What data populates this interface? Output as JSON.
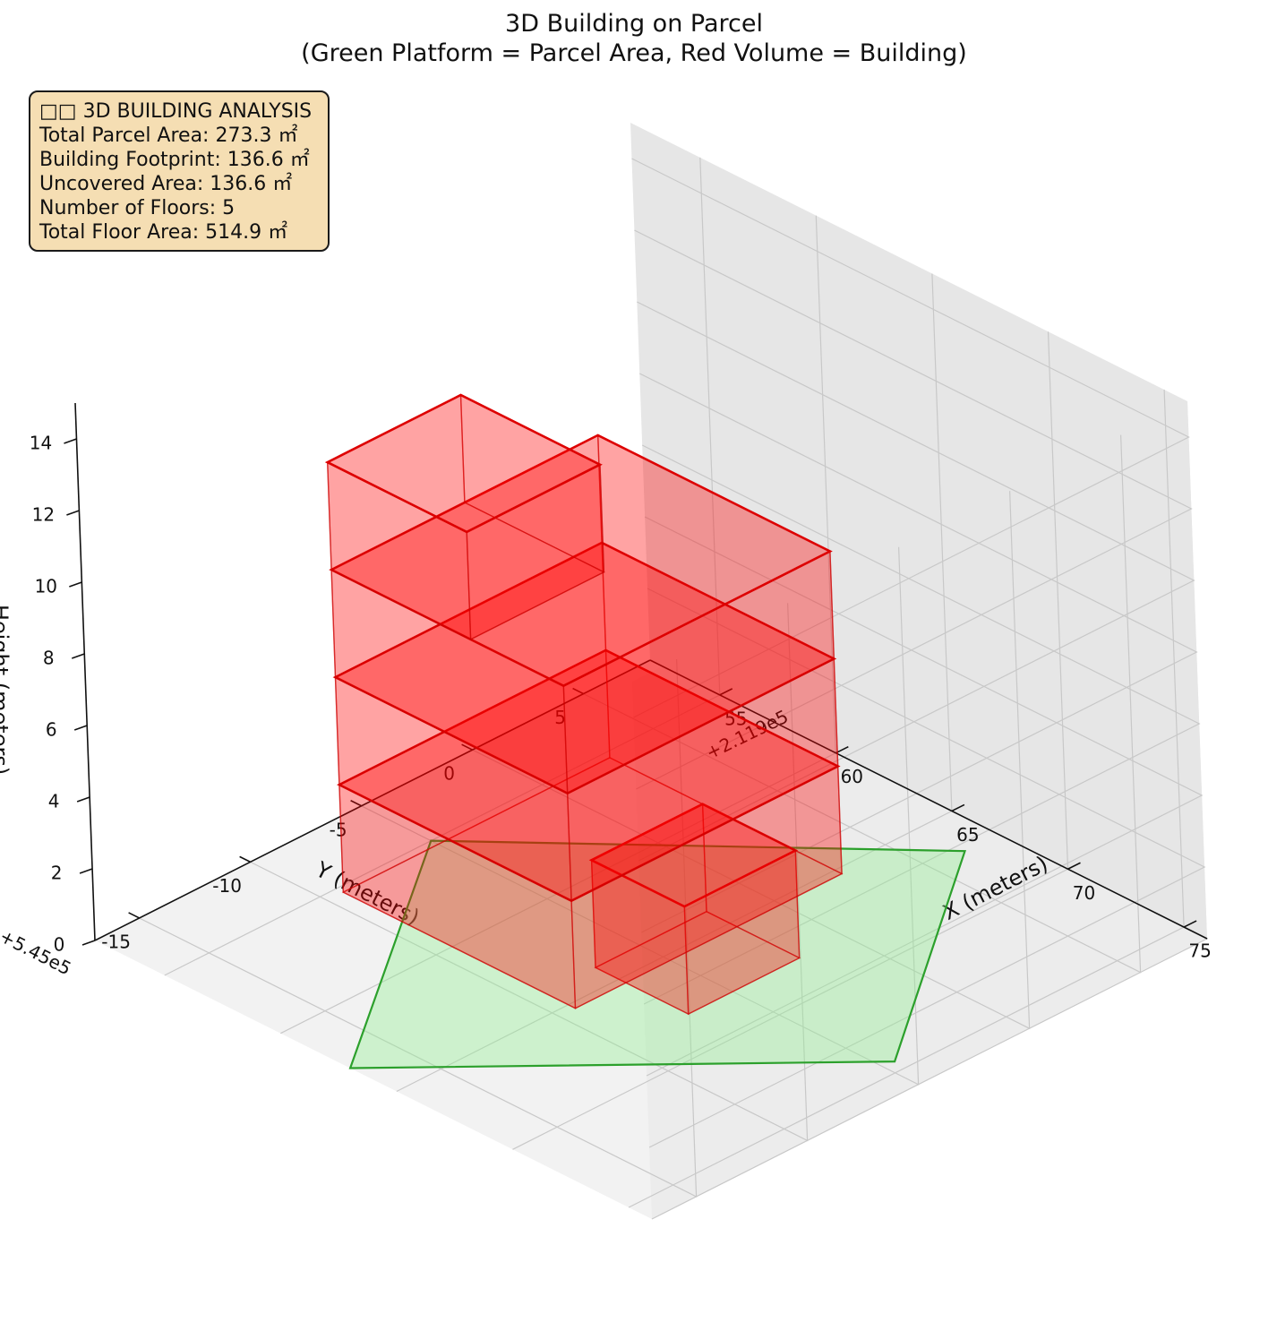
{
  "chart_data": {
    "type": "3d-bar",
    "title_lines": [
      "3D Building on Parcel",
      "(Green Platform = Parcel Area, Red Volume = Building)"
    ],
    "xlabel": "X (meters)",
    "ylabel": "Y (meters)",
    "zlabel": "Height (meters)",
    "x_offset_label": "+2.119e5",
    "y_offset_label": "+5.45e5",
    "x_ticks": [
      "55",
      "60",
      "65",
      "70",
      "75"
    ],
    "y_ticks": [
      "-15",
      "-10",
      "-5",
      "0",
      "5"
    ],
    "z_ticks": [
      "0",
      "2",
      "4",
      "6",
      "8",
      "10",
      "12",
      "14"
    ],
    "xlim": [
      52,
      76
    ],
    "ylim": [
      -17,
      8
    ],
    "zlim": [
      0,
      15
    ],
    "grid": true,
    "colors": {
      "parcel_fill": "#90ee90",
      "parcel_edge": "#2ca02c",
      "building": "#ff0000"
    },
    "parcel": {
      "label": "Parcel Area",
      "corners": [
        [
          63.0,
          -17.0
        ],
        [
          74.5,
          -4.5
        ],
        [
          67.0,
          6.5
        ],
        [
          55.0,
          -5.0
        ]
      ],
      "z": 0
    },
    "building": {
      "label": "Building",
      "floors": 5,
      "floor_height": 3,
      "volumes": [
        {
          "x": [
            64,
            68
          ],
          "y": [
            -7,
            -2
          ],
          "z": [
            0,
            3
          ]
        },
        {
          "x": [
            60,
            70
          ],
          "y": [
            -14,
            -2
          ],
          "z": [
            3,
            6
          ]
        },
        {
          "x": [
            60,
            70
          ],
          "y": [
            -14,
            -2
          ],
          "z": [
            6,
            9
          ]
        },
        {
          "x": [
            60,
            70
          ],
          "y": [
            -14,
            -2
          ],
          "z": [
            9,
            12
          ]
        },
        {
          "x": [
            60,
            66
          ],
          "y": [
            -14,
            -8
          ],
          "z": [
            12,
            15
          ]
        }
      ]
    }
  },
  "info_box": {
    "lines": [
      "□□ 3D BUILDING ANALYSIS",
      "Total Parcel Area: 273.3 ㎡",
      "Building Footprint: 136.6 ㎡",
      "Uncovered Area: 136.6 ㎡",
      "Number of Floors: 5",
      "Total Floor Area: 514.9 ㎡"
    ]
  }
}
